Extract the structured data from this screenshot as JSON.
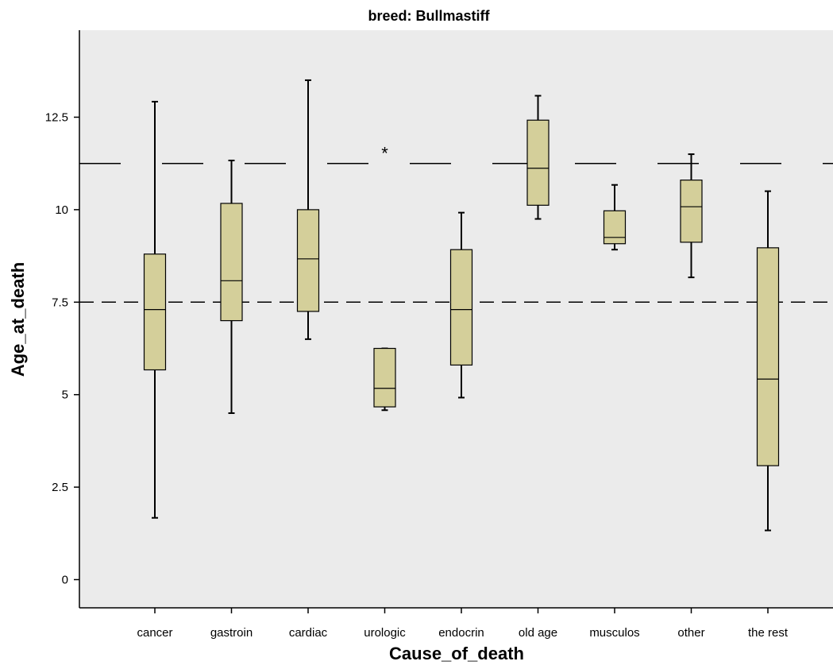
{
  "chart_data": {
    "type": "boxplot",
    "title": "breed: Bullmastiff",
    "xlabel": "Cause_of_death",
    "ylabel": "Age_at_death",
    "ylim": [
      -0.8,
      14.8
    ],
    "yticks": [
      0,
      2.5,
      5,
      7.5,
      10,
      12.5
    ],
    "ytick_labels": [
      "0",
      "2.5",
      "5",
      "7.5",
      "10",
      "12.5"
    ],
    "grid": false,
    "background_color": "#ebebeb",
    "box_fill_color": "#d4cf9a",
    "reference_lines": [
      {
        "y": 11.25,
        "style": "long-dash"
      },
      {
        "y": 7.5,
        "style": "short-dash"
      }
    ],
    "categories": [
      "cancer",
      "gastroin",
      "cardiac",
      "urologic",
      "endocrin",
      "old age",
      "musculos",
      "other",
      "the rest"
    ],
    "boxes": [
      {
        "category": "cancer",
        "whisker_low": 1.67,
        "q1": 5.67,
        "median": 7.3,
        "q3": 8.8,
        "whisker_high": 12.92,
        "outliers": []
      },
      {
        "category": "gastroin",
        "whisker_low": 4.5,
        "q1": 7.0,
        "median": 8.08,
        "q3": 10.17,
        "whisker_high": 11.33,
        "outliers": []
      },
      {
        "category": "cardiac",
        "whisker_low": 6.5,
        "q1": 7.25,
        "median": 8.67,
        "q3": 10.0,
        "whisker_high": 13.5,
        "outliers": []
      },
      {
        "category": "urologic",
        "whisker_low": 4.58,
        "q1": 4.67,
        "median": 5.17,
        "q3": 6.25,
        "whisker_high": 6.25,
        "outliers": [
          11.58
        ]
      },
      {
        "category": "endocrin",
        "whisker_low": 4.92,
        "q1": 5.8,
        "median": 7.3,
        "q3": 8.92,
        "whisker_high": 9.92,
        "outliers": []
      },
      {
        "category": "old age",
        "whisker_low": 9.75,
        "q1": 10.12,
        "median": 11.12,
        "q3": 12.42,
        "whisker_high": 13.08,
        "outliers": []
      },
      {
        "category": "musculos",
        "whisker_low": 8.92,
        "q1": 9.08,
        "median": 9.25,
        "q3": 9.97,
        "whisker_high": 10.67,
        "outliers": []
      },
      {
        "category": "other",
        "whisker_low": 8.17,
        "q1": 9.12,
        "median": 10.08,
        "q3": 10.8,
        "whisker_high": 11.5,
        "outliers": []
      },
      {
        "category": "the rest",
        "whisker_low": 1.33,
        "q1": 3.08,
        "median": 5.42,
        "q3": 8.97,
        "whisker_high": 10.5,
        "outliers": []
      }
    ],
    "outlier_marker": "*"
  }
}
